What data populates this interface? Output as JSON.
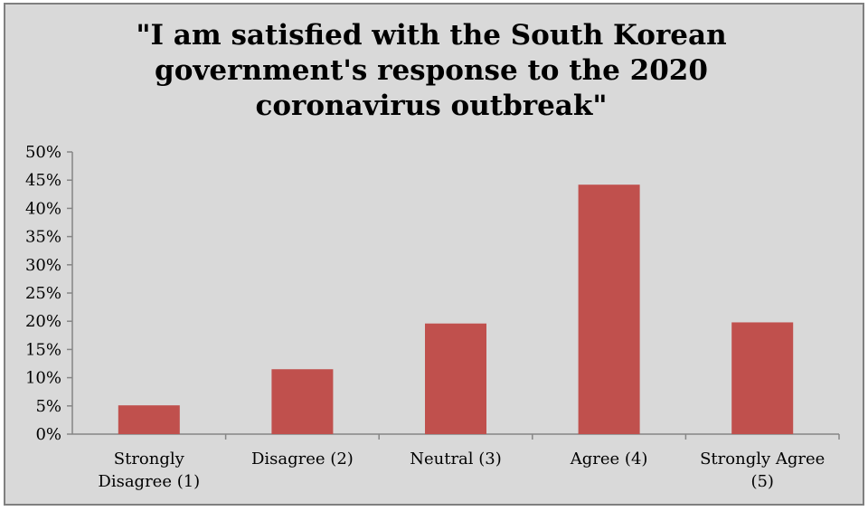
{
  "chart_data": {
    "type": "bar",
    "title_lines": [
      "\"I am satisfied with the South Korean",
      "government's response to the 2020",
      "coronavirus outbreak\""
    ],
    "categories": [
      [
        "Strongly",
        "Disagree (1)"
      ],
      [
        "Disagree (2)"
      ],
      [
        "Neutral (3)"
      ],
      [
        "Agree (4)"
      ],
      [
        "Strongly Agree",
        "(5)"
      ]
    ],
    "values": [
      5.1,
      11.5,
      19.6,
      44.2,
      19.8
    ],
    "ylim": [
      0,
      50
    ],
    "yticks": [
      "0%",
      "5%",
      "10%",
      "15%",
      "20%",
      "25%",
      "30%",
      "35%",
      "40%",
      "45%",
      "50%"
    ],
    "grid": false,
    "legend": "none",
    "bar_color": "#c0504d",
    "background_color": "#d9d9d9"
  }
}
